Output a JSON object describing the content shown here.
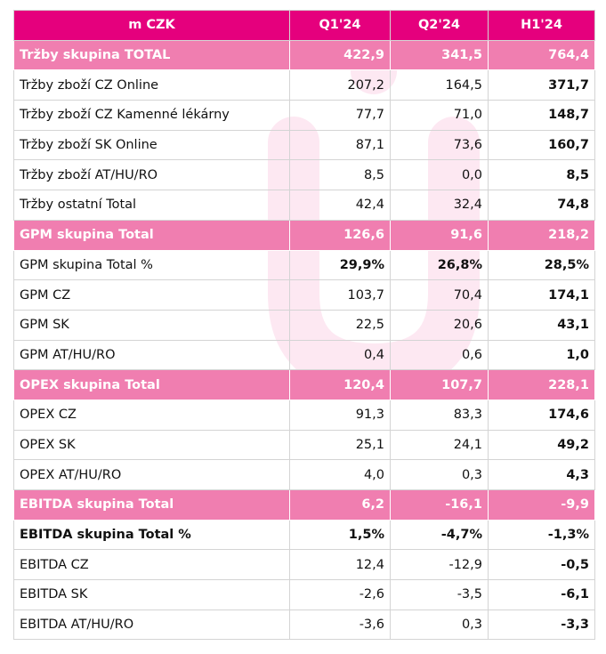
{
  "header": {
    "label": "m CZK",
    "q1": "Q1'24",
    "q2": "Q2'24",
    "h1": "H1'24"
  },
  "rows": [
    {
      "label": "Tržby skupina TOTAL",
      "q1": "422,9",
      "q2": "341,5",
      "h1": "764,4"
    },
    {
      "label": "Tržby zboží CZ Online",
      "q1": "207,2",
      "q2": "164,5",
      "h1": "371,7"
    },
    {
      "label": "Tržby zboží CZ Kamenné lékárny",
      "q1": "77,7",
      "q2": "71,0",
      "h1": "148,7"
    },
    {
      "label": "Tržby zboží SK Online",
      "q1": "87,1",
      "q2": "73,6",
      "h1": "160,7"
    },
    {
      "label": "Tržby zboží AT/HU/RO",
      "q1": "8,5",
      "q2": "0,0",
      "h1": "8,5"
    },
    {
      "label": "Tržby ostatní Total",
      "q1": "42,4",
      "q2": "32,4",
      "h1": "74,8"
    },
    {
      "label": "GPM skupina Total",
      "q1": "126,6",
      "q2": "91,6",
      "h1": "218,2"
    },
    {
      "label": "GPM skupina Total %",
      "q1": "29,9%",
      "q2": "26,8%",
      "h1": "28,5%"
    },
    {
      "label": "GPM CZ",
      "q1": "103,7",
      "q2": "70,4",
      "h1": "174,1"
    },
    {
      "label": "GPM SK",
      "q1": "22,5",
      "q2": "20,6",
      "h1": "43,1"
    },
    {
      "label": "GPM AT/HU/RO",
      "q1": "0,4",
      "q2": "0,6",
      "h1": "1,0"
    },
    {
      "label": "OPEX skupina Total",
      "q1": "120,4",
      "q2": "107,7",
      "h1": "228,1"
    },
    {
      "label": "OPEX CZ",
      "q1": "91,3",
      "q2": "83,3",
      "h1": "174,6"
    },
    {
      "label": "OPEX SK",
      "q1": "25,1",
      "q2": "24,1",
      "h1": "49,2"
    },
    {
      "label": "OPEX AT/HU/RO",
      "q1": "4,0",
      "q2": "0,3",
      "h1": "4,3"
    },
    {
      "label": "EBITDA skupina Total",
      "q1": "6,2",
      "q2": "-16,1",
      "h1": "-9,9"
    },
    {
      "label": "EBITDA skupina Total %",
      "q1": "1,5%",
      "q2": "-4,7%",
      "h1": "-1,3%"
    },
    {
      "label": "EBITDA CZ",
      "q1": "12,4",
      "q2": "-12,9",
      "h1": "-0,5"
    },
    {
      "label": "EBITDA SK",
      "q1": "-2,6",
      "q2": "-3,5",
      "h1": "-6,1"
    },
    {
      "label": "EBITDA AT/HU/RO",
      "q1": "-3,6",
      "q2": "0,3",
      "h1": "-3,3"
    }
  ],
  "colors": {
    "header_bg": "#e5007d",
    "section_bg": "#f07eb0",
    "watermark": "#fce4ef"
  }
}
